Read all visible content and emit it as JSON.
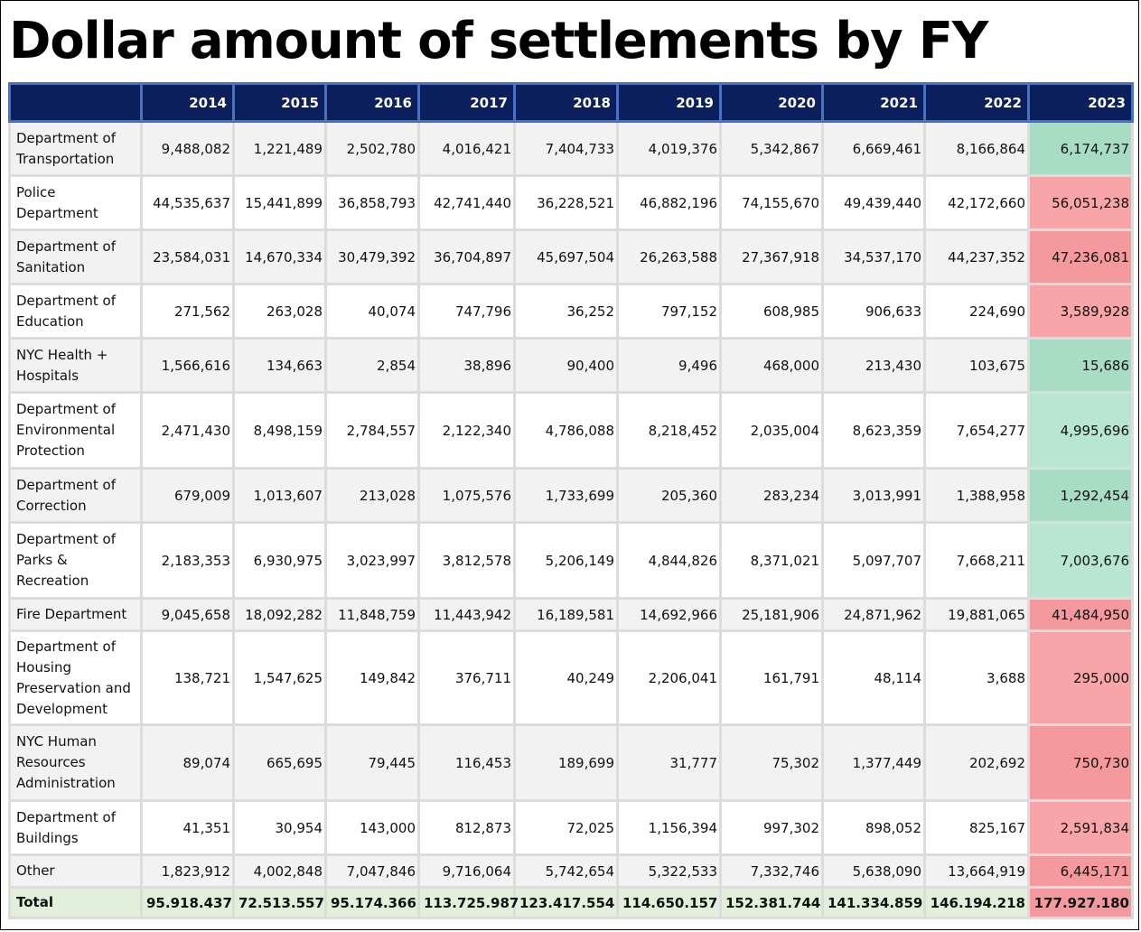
{
  "title": "Dollar amount of settlements by FY",
  "header": {
    "corner": "",
    "years": [
      "2014",
      "2015",
      "2016",
      "2017",
      "2018",
      "2019",
      "2020",
      "2021",
      "2022",
      "2023"
    ]
  },
  "rows": [
    {
      "agency": "Department of Transportation",
      "values": [
        "9,488,082",
        "1,221,489",
        "2,502,780",
        "4,016,421",
        "7,404,733",
        "4,019,376",
        "5,342,867",
        "6,669,461",
        "8,166,864",
        "6,174,737"
      ],
      "trend": "decrease"
    },
    {
      "agency": "Police Department",
      "values": [
        "44,535,637",
        "15,441,899",
        "36,858,793",
        "42,741,440",
        "36,228,521",
        "46,882,196",
        "74,155,670",
        "49,439,440",
        "42,172,660",
        "56,051,238"
      ],
      "trend": "increase"
    },
    {
      "agency": "Department of Sanitation",
      "values": [
        "23,584,031",
        "14,670,334",
        "30,479,392",
        "36,704,897",
        "45,697,504",
        "26,263,588",
        "27,367,918",
        "34,537,170",
        "44,237,352",
        "47,236,081"
      ],
      "trend": "increase"
    },
    {
      "agency": "Department of Education",
      "values": [
        "271,562",
        "263,028",
        "40,074",
        "747,796",
        "36,252",
        "797,152",
        "608,985",
        "906,633",
        "224,690",
        "3,589,928"
      ],
      "trend": "increase"
    },
    {
      "agency": "NYC Health + Hospitals",
      "values": [
        "1,566,616",
        "134,663",
        "2,854",
        "38,896",
        "90,400",
        "9,496",
        "468,000",
        "213,430",
        "103,675",
        "15,686"
      ],
      "trend": "decrease"
    },
    {
      "agency": "Department of Environmental Protection",
      "values": [
        "2,471,430",
        "8,498,159",
        "2,784,557",
        "2,122,340",
        "4,786,088",
        "8,218,452",
        "2,035,004",
        "8,623,359",
        "7,654,277",
        "4,995,696"
      ],
      "trend": "decrease"
    },
    {
      "agency": "Department of Correction",
      "values": [
        "679,009",
        "1,013,607",
        "213,028",
        "1,075,576",
        "1,733,699",
        "205,360",
        "283,234",
        "3,013,991",
        "1,388,958",
        "1,292,454"
      ],
      "trend": "decrease"
    },
    {
      "agency": "Department of Parks & Recreation",
      "values": [
        "2,183,353",
        "6,930,975",
        "3,023,997",
        "3,812,578",
        "5,206,149",
        "4,844,826",
        "8,371,021",
        "5,097,707",
        "7,668,211",
        "7,003,676"
      ],
      "trend": "decrease"
    },
    {
      "agency": "Fire Department",
      "values": [
        "9,045,658",
        "18,092,282",
        "11,848,759",
        "11,443,942",
        "16,189,581",
        "14,692,966",
        "25,181,906",
        "24,871,962",
        "19,881,065",
        "41,484,950"
      ],
      "trend": "increase"
    },
    {
      "agency": "Department of Housing Preservation and Development",
      "values": [
        "138,721",
        "1,547,625",
        "149,842",
        "376,711",
        "40,249",
        "2,206,041",
        "161,791",
        "48,114",
        "3,688",
        "295,000"
      ],
      "trend": "increase"
    },
    {
      "agency": "NYC Human Resources Administration",
      "values": [
        "89,074",
        "665,695",
        "79,445",
        "116,453",
        "189,699",
        "31,777",
        "75,302",
        "1,377,449",
        "202,692",
        "750,730"
      ],
      "trend": "increase"
    },
    {
      "agency": "Department of Buildings",
      "values": [
        "41,351",
        "30,954",
        "143,000",
        "812,873",
        "72,025",
        "1,156,394",
        "997,302",
        "898,052",
        "825,167",
        "2,591,834"
      ],
      "trend": "increase"
    },
    {
      "agency": "Other",
      "values": [
        "1,823,912",
        "4,002,848",
        "7,047,846",
        "9,716,064",
        "5,742,654",
        "5,322,533",
        "7,332,746",
        "5,638,090",
        "13,664,919",
        "6,445,171"
      ],
      "trend": "increase"
    }
  ],
  "total": {
    "label": "Total",
    "values": [
      "95.918.437",
      "72.513.557",
      "95.174.366",
      "113.725.987",
      "123.417.554",
      "114.650.157",
      "152.381.744",
      "141.334.859",
      "146.194.218",
      "177.927.180"
    ]
  },
  "colors": {
    "header_bg": "#0b1f5c",
    "header_border": "#4a72c4",
    "decrease_fill": "#a8dcc4",
    "increase_fill": "#f7a5a8",
    "total_row_bg": "#e2efda"
  }
}
